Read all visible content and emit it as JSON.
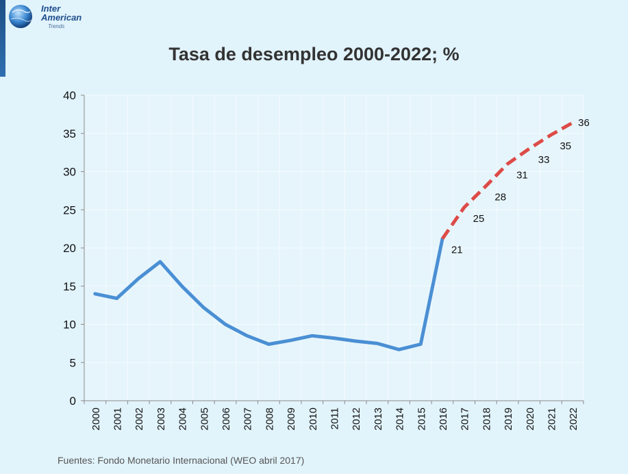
{
  "logo": {
    "line1": "Inter",
    "line2": "American",
    "line3": "Trends"
  },
  "title": "Tasa de desempleo 2000-2022; %",
  "source": "Fuentes: Fondo Monetario Internacional (WEO abril 2017)",
  "colors": {
    "actual": "#4a8fd4",
    "forecast": "#dd4b47",
    "background": "#e1f3fb"
  },
  "chart_data": {
    "type": "line",
    "title": "Tasa de desempleo 2000-2022; %",
    "categories": [
      "2000",
      "2001",
      "2002",
      "2003",
      "2004",
      "2005",
      "2006",
      "2007",
      "2008",
      "2009",
      "2010",
      "2011",
      "2012",
      "2013",
      "2014",
      "2015",
      "2016",
      "2017",
      "2018",
      "2019",
      "2020",
      "2021",
      "2022"
    ],
    "ylim": [
      0,
      40
    ],
    "yticks": [
      "0",
      "5",
      "10",
      "15",
      "20",
      "25",
      "30",
      "35",
      "40"
    ],
    "grid": true,
    "series": [
      {
        "style": "solid",
        "x": [
          "2000",
          "2001",
          "2002",
          "2003",
          "2004",
          "2005",
          "2006",
          "2007",
          "2008",
          "2009",
          "2010",
          "2011",
          "2012",
          "2013",
          "2014",
          "2015",
          "2016"
        ],
        "values": [
          14.0,
          13.4,
          16.0,
          18.2,
          15.0,
          12.2,
          10.0,
          8.5,
          7.4,
          7.9,
          8.5,
          8.2,
          7.8,
          7.5,
          6.7,
          7.4,
          21.2
        ]
      },
      {
        "style": "dashed",
        "x": [
          "2016",
          "2017",
          "2018",
          "2019",
          "2020",
          "2021",
          "2022"
        ],
        "values": [
          21.2,
          25.3,
          28.1,
          31.0,
          33.0,
          34.8,
          36.4
        ],
        "labels": [
          "21",
          "25",
          "28",
          "31",
          "33",
          "35",
          "36"
        ]
      }
    ]
  }
}
